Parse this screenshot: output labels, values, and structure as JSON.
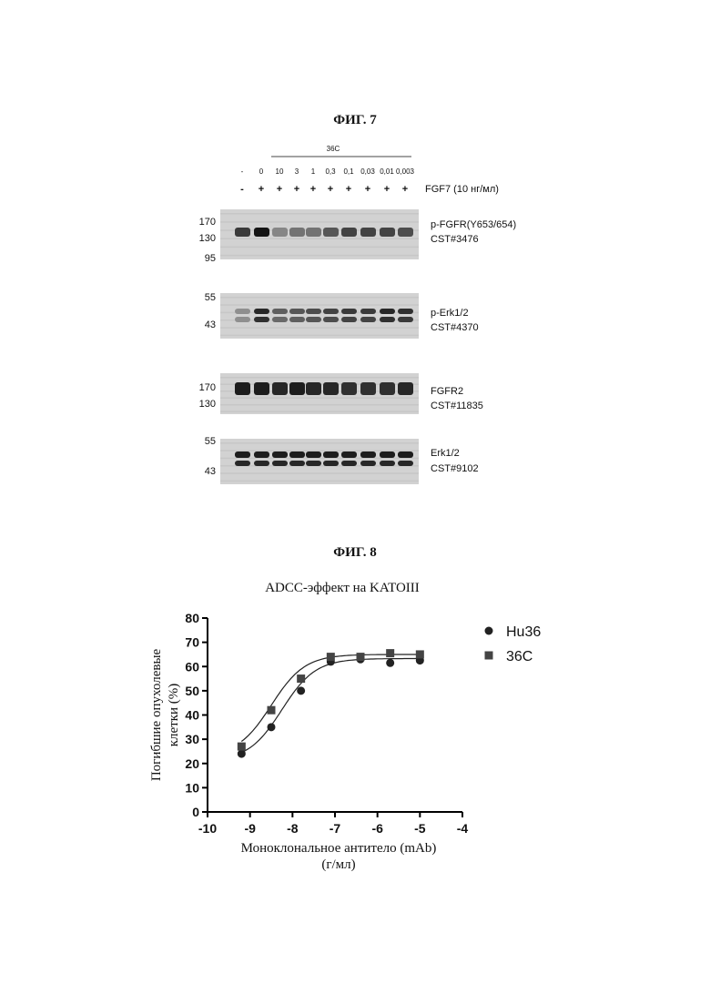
{
  "fig7": {
    "title": "ФИГ. 7",
    "group_label": "36C",
    "lanes": [
      "-",
      "0",
      "10",
      "3",
      "1",
      "0,3",
      "0,1",
      "0,03",
      "0,01",
      "0,003"
    ],
    "treatment": [
      "-",
      "+",
      "+",
      "+",
      "+",
      "+",
      "+",
      "+",
      "+",
      "+"
    ],
    "treatment_label": "FGF7 (10 нг/мл)",
    "blots": [
      {
        "markers": [
          "170",
          "130",
          "95"
        ],
        "label1": "p-FGFR(Y653/654)",
        "label2": "CST#3476"
      },
      {
        "markers": [
          "55",
          "43"
        ],
        "label1": "p-Erk1/2",
        "label2": "CST#4370"
      },
      {
        "markers": [
          "170",
          "130"
        ],
        "label1": "FGFR2",
        "label2": "CST#11835"
      },
      {
        "markers": [
          "55",
          "43"
        ],
        "label1": "Erk1/2",
        "label2": "CST#9102"
      }
    ]
  },
  "fig8": {
    "title": "ФИГ. 8",
    "chart_data": {
      "type": "scatter",
      "title": "ADCC-эффект на KATOIII",
      "ylabel_line1": "Погибшие опухолевые",
      "ylabel_line2": "клетки (%)",
      "xlabel_line1": "Моноклональное антитело (mAb)",
      "xlabel_line2": "(г/мл)",
      "xlim": [
        -10,
        -4
      ],
      "ylim": [
        0,
        80
      ],
      "xticks": [
        -10,
        -9,
        -8,
        -7,
        -6,
        -5,
        -4
      ],
      "yticks": [
        0,
        10,
        20,
        30,
        40,
        50,
        60,
        70,
        80
      ],
      "legend_position": "right",
      "series": [
        {
          "name": "Hu36",
          "marker": "circle",
          "x": [
            -9.2,
            -8.5,
            -7.8,
            -7.1,
            -6.4,
            -5.7,
            -5.0
          ],
          "y": [
            24,
            35,
            50,
            62,
            63,
            61.5,
            62.5
          ],
          "fit": {
            "bottom": 21,
            "top": 63.3,
            "logEC50": -8.25,
            "hill": 1.1
          }
        },
        {
          "name": "36C",
          "marker": "square",
          "x": [
            -9.2,
            -8.5,
            -7.8,
            -7.1,
            -6.4,
            -5.7,
            -5.0
          ],
          "y": [
            27,
            42,
            55,
            64,
            64,
            65.5,
            65
          ],
          "fit": {
            "bottom": 23,
            "top": 65,
            "logEC50": -8.5,
            "hill": 1.1
          }
        }
      ]
    }
  }
}
